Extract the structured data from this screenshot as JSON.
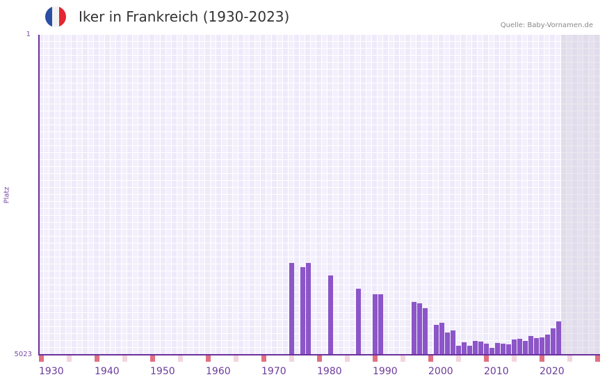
{
  "header": {
    "title": "Iker in Frankreich (1930-2023)",
    "source": "Quelle: Baby-Vornamen.de",
    "flag_colors": [
      "#2c4ea3",
      "#f2f2f2",
      "#e32733"
    ]
  },
  "axis": {
    "y_title": "Platz",
    "y_top": "1",
    "y_bottom": "5023",
    "x_labels": [
      "1930",
      "1940",
      "1950",
      "1960",
      "1970",
      "1980",
      "1990",
      "2000",
      "2010",
      "2020"
    ]
  },
  "colors": {
    "bar": "#8c55c8",
    "axis": "#6b2f9a",
    "decade_marker": "#e07080",
    "half_decade_marker": "#f3d5de"
  },
  "chart_data": {
    "type": "bar",
    "title": "Iker in Frankreich (1930-2023)",
    "xlabel": "",
    "ylabel": "Platz",
    "ylim": [
      5023,
      1
    ],
    "y_inverted": true,
    "x_range": [
      1930,
      2030
    ],
    "future_shaded_from": 2024,
    "grid": true,
    "legend": null,
    "categories": [
      1975,
      1977,
      1978,
      1982,
      1987,
      1990,
      1991,
      1997,
      1998,
      1999,
      2001,
      2002,
      2003,
      2004,
      2005,
      2006,
      2007,
      2008,
      2009,
      2010,
      2011,
      2012,
      2013,
      2014,
      2015,
      2016,
      2017,
      2018,
      2019,
      2020,
      2021,
      2022,
      2023
    ],
    "values": [
      3582,
      3647,
      3582,
      3778,
      3986,
      4073,
      4073,
      4193,
      4215,
      4292,
      4553,
      4521,
      4674,
      4641,
      4881,
      4827,
      4881,
      4805,
      4816,
      4848,
      4914,
      4838,
      4848,
      4859,
      4783,
      4772,
      4805,
      4728,
      4761,
      4750,
      4706,
      4608,
      4499
    ]
  }
}
